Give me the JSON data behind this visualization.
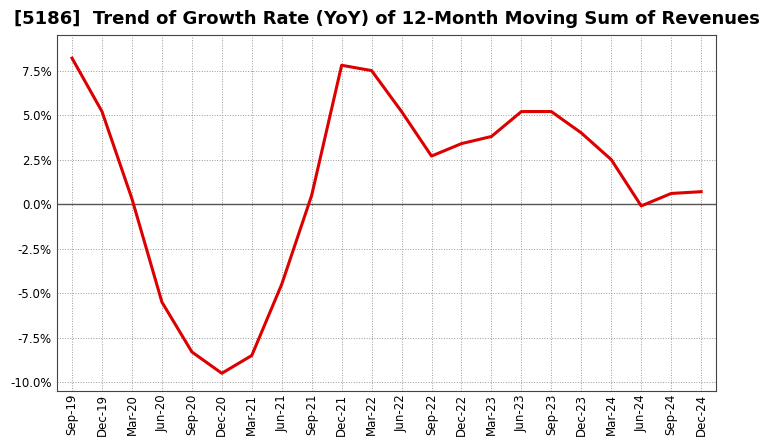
{
  "title": "[5186]  Trend of Growth Rate (YoY) of 12-Month Moving Sum of Revenues",
  "line_color": "#dd0000",
  "background_color": "#ffffff",
  "grid_color": "#999999",
  "zero_line_color": "#555555",
  "x_labels": [
    "Sep-19",
    "Dec-19",
    "Mar-20",
    "Jun-20",
    "Sep-20",
    "Dec-20",
    "Mar-21",
    "Jun-21",
    "Sep-21",
    "Dec-21",
    "Mar-22",
    "Jun-22",
    "Sep-22",
    "Dec-22",
    "Mar-23",
    "Jun-23",
    "Sep-23",
    "Dec-23",
    "Mar-24",
    "Jun-24",
    "Sep-24",
    "Dec-24"
  ],
  "y_values": [
    0.082,
    0.052,
    0.003,
    -0.055,
    -0.083,
    -0.095,
    -0.085,
    -0.045,
    0.005,
    0.078,
    0.075,
    0.052,
    0.027,
    0.034,
    0.038,
    0.052,
    0.052,
    0.04,
    0.025,
    -0.001,
    0.006,
    0.007
  ],
  "ylim": [
    -0.105,
    0.095
  ],
  "yticks": [
    -0.1,
    -0.075,
    -0.05,
    -0.025,
    0.0,
    0.025,
    0.05,
    0.075
  ],
  "title_fontsize": 13,
  "tick_fontsize": 8.5,
  "linewidth": 2.2
}
